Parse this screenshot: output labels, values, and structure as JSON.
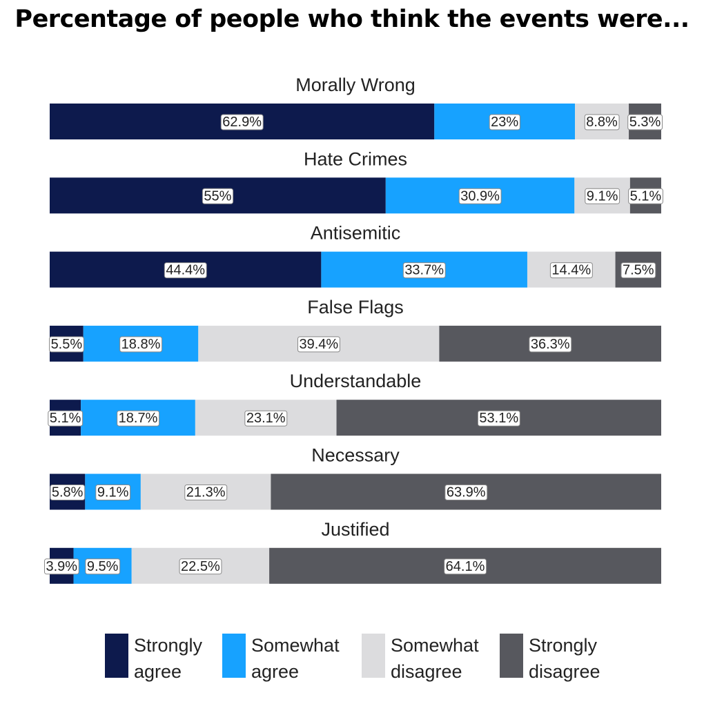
{
  "title": "Percentage of people who think the events were...",
  "colors": {
    "strongly_agree": "#0d1a4d",
    "somewhat_agree": "#17a2ff",
    "somewhat_disagree": "#dcdcde",
    "strongly_disagree": "#57585e"
  },
  "legend": [
    {
      "line1": "Strongly",
      "line2": "agree",
      "color": "#0d1a4d"
    },
    {
      "line1": "Somewhat",
      "line2": "agree",
      "color": "#17a2ff"
    },
    {
      "line1": "Somewhat",
      "line2": "disagree",
      "color": "#dcdcde"
    },
    {
      "line1": "Strongly",
      "line2": "disagree",
      "color": "#57585e"
    }
  ],
  "chart_data": {
    "type": "bar",
    "orientation": "horizontal",
    "stacked": true,
    "title": "Percentage of people who think the events were...",
    "categories": [
      "Morally Wrong",
      "Hate Crimes",
      "Antisemitic",
      "False Flags",
      "Understandable",
      "Necessary",
      "Justified"
    ],
    "series": [
      {
        "name": "Strongly agree",
        "values": [
          62.9,
          55,
          44.4,
          5.5,
          5.1,
          5.8,
          3.9
        ],
        "labels": [
          "62.9%",
          "55%",
          "44.4%",
          "5.5%",
          "5.1%",
          "5.8%",
          "3.9%"
        ]
      },
      {
        "name": "Somewhat agree",
        "values": [
          23,
          30.9,
          33.7,
          18.8,
          18.7,
          9.1,
          9.5
        ],
        "labels": [
          "23%",
          "30.9%",
          "33.7%",
          "18.8%",
          "18.7%",
          "9.1%",
          "9.5%"
        ]
      },
      {
        "name": "Somewhat disagree",
        "values": [
          8.8,
          9.1,
          14.4,
          39.4,
          23.1,
          21.3,
          22.5
        ],
        "labels": [
          "8.8%",
          "9.1%",
          "14.4%",
          "39.4%",
          "23.1%",
          "21.3%",
          "22.5%"
        ]
      },
      {
        "name": "Strongly disagree",
        "values": [
          5.3,
          5.1,
          7.5,
          36.3,
          53.1,
          63.9,
          64.1
        ],
        "labels": [
          "5.3%",
          "5.1%",
          "7.5%",
          "36.3%",
          "53.1%",
          "63.9%",
          "64.1%"
        ]
      }
    ],
    "xlim": [
      0,
      100
    ],
    "xlabel": "",
    "ylabel": "",
    "grid": false,
    "legend_position": "bottom"
  }
}
